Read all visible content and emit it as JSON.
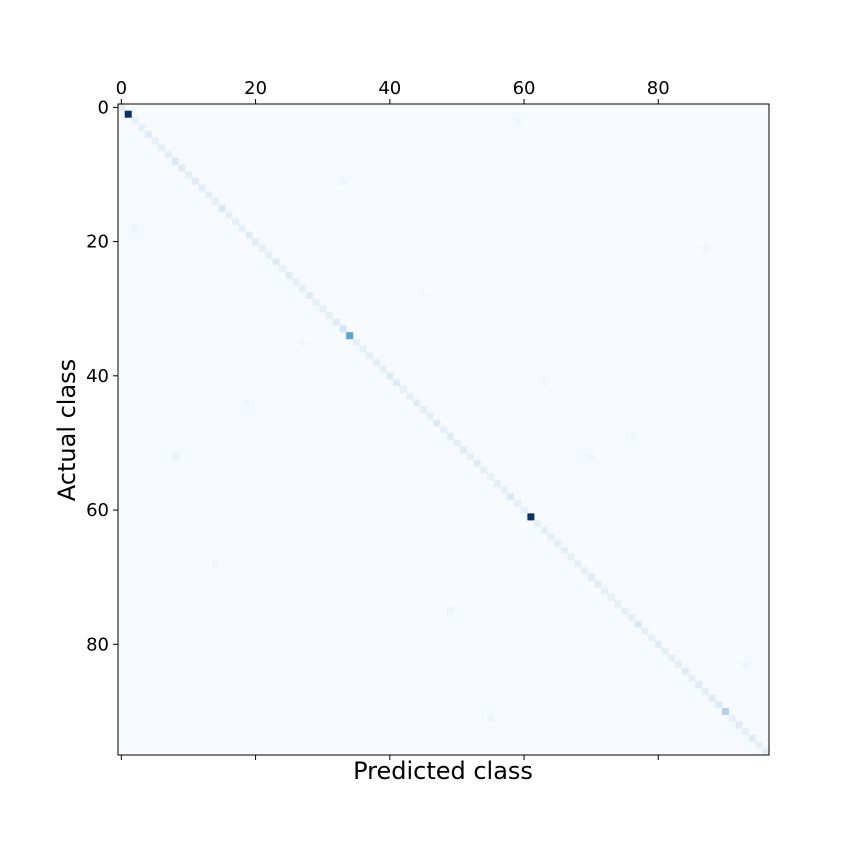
{
  "chart_data": {
    "type": "heatmap",
    "title": "",
    "xlabel": "Predicted class",
    "ylabel": "Actual class",
    "n_classes": 97,
    "xlim": [
      -0.5,
      96.5
    ],
    "ylim": [
      96.5,
      -0.5
    ],
    "x_ticks": [
      0,
      20,
      40,
      60,
      80
    ],
    "x_tick_labels": [
      "0",
      "20",
      "40",
      "60",
      "80"
    ],
    "x_tick_position": "top",
    "y_ticks": [
      0,
      20,
      40,
      60,
      80
    ],
    "y_tick_labels": [
      "0",
      "20",
      "40",
      "60",
      "80"
    ],
    "colormap": "Blues",
    "color_low": "#f7fbff",
    "color_high": "#08306b",
    "grid": false,
    "legend": "none",
    "diagonal_default": 0.09,
    "diagonal_highlights": [
      {
        "i": 1,
        "v": 1.0
      },
      {
        "i": 4,
        "v": 0.12
      },
      {
        "i": 8,
        "v": 0.14
      },
      {
        "i": 9,
        "v": 0.12
      },
      {
        "i": 11,
        "v": 0.12
      },
      {
        "i": 12,
        "v": 0.11
      },
      {
        "i": 15,
        "v": 0.14
      },
      {
        "i": 19,
        "v": 0.12
      },
      {
        "i": 20,
        "v": 0.11
      },
      {
        "i": 23,
        "v": 0.12
      },
      {
        "i": 25,
        "v": 0.12
      },
      {
        "i": 28,
        "v": 0.12
      },
      {
        "i": 32,
        "v": 0.12
      },
      {
        "i": 33,
        "v": 0.18
      },
      {
        "i": 34,
        "v": 0.55
      },
      {
        "i": 40,
        "v": 0.13
      },
      {
        "i": 41,
        "v": 0.12
      },
      {
        "i": 44,
        "v": 0.12
      },
      {
        "i": 47,
        "v": 0.12
      },
      {
        "i": 49,
        "v": 0.12
      },
      {
        "i": 51,
        "v": 0.12
      },
      {
        "i": 53,
        "v": 0.12
      },
      {
        "i": 58,
        "v": 0.14
      },
      {
        "i": 61,
        "v": 1.0
      },
      {
        "i": 70,
        "v": 0.12
      },
      {
        "i": 71,
        "v": 0.12
      },
      {
        "i": 77,
        "v": 0.14
      },
      {
        "i": 80,
        "v": 0.12
      },
      {
        "i": 84,
        "v": 0.12
      },
      {
        "i": 86,
        "v": 0.12
      },
      {
        "i": 88,
        "v": 0.12
      },
      {
        "i": 89,
        "v": 0.13
      },
      {
        "i": 90,
        "v": 0.3
      },
      {
        "i": 92,
        "v": 0.12
      },
      {
        "i": 94,
        "v": 0.12
      }
    ],
    "off_diagonal": [
      {
        "row": 52,
        "col": 8,
        "v": 0.06
      },
      {
        "row": 18,
        "col": 2,
        "v": 0.04
      },
      {
        "row": 11,
        "col": 33,
        "v": 0.04
      },
      {
        "row": 75,
        "col": 49,
        "v": 0.04
      },
      {
        "row": 91,
        "col": 55,
        "v": 0.05
      },
      {
        "row": 52,
        "col": 70,
        "v": 0.04
      },
      {
        "row": 49,
        "col": 76,
        "v": 0.04
      },
      {
        "row": 41,
        "col": 63,
        "v": 0.03
      },
      {
        "row": 35,
        "col": 27,
        "v": 0.03
      },
      {
        "row": 44,
        "col": 19,
        "v": 0.03
      },
      {
        "row": 83,
        "col": 93,
        "v": 0.03
      },
      {
        "row": 2,
        "col": 59,
        "v": 0.03
      },
      {
        "row": 21,
        "col": 87,
        "v": 0.03
      },
      {
        "row": 68,
        "col": 14,
        "v": 0.03
      },
      {
        "row": 28,
        "col": 45,
        "v": 0.03
      }
    ]
  }
}
